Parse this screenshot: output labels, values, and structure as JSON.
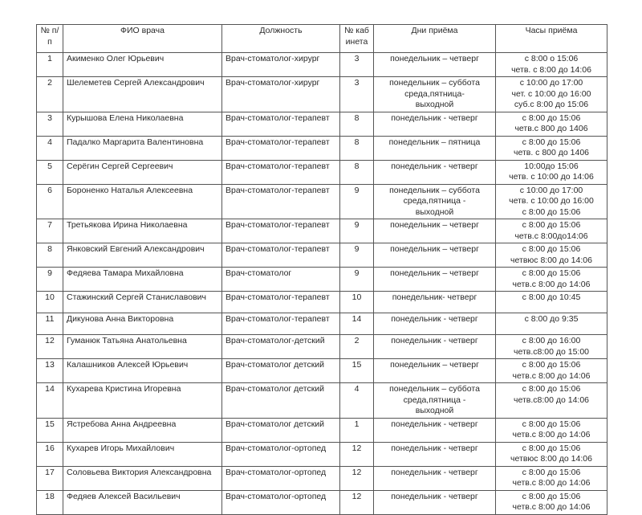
{
  "headers": [
    "№ п/п",
    "ФИО врача",
    "Должность",
    "№ кабинета",
    "Дни приёма",
    "Часы приёма"
  ],
  "rows": [
    {
      "n": "1",
      "name": "Акименко Олег Юрьевич",
      "pos": "Врач-стоматолог-хирург",
      "room": "3",
      "days": [
        "понедельник – четверг"
      ],
      "hours": [
        "с 8:00 о 15:06",
        "четв. с 8:00 до 14:06"
      ]
    },
    {
      "n": "2",
      "name": "Шелеметев Сергей Александрович",
      "pos": "Врач-стоматолог-хирург",
      "room": "3",
      "days": [
        "понедельник – суббота",
        "среда,пятница-",
        "выходной"
      ],
      "hours": [
        "с 10:00 до 17:00",
        "чет. с 10:00 до 16:00",
        "суб.с 8:00 до 15:06"
      ]
    },
    {
      "n": "3",
      "name": "Курышова Елена Николаевна",
      "pos": "Врач-стоматолог-терапевт",
      "room": "8",
      "days": [
        "понедельник - четверг"
      ],
      "hours": [
        "с 8:00 до 15:06",
        "четв.с 800 до 1406"
      ]
    },
    {
      "n": "4",
      "name": "Падалко Маргарита Валентиновна",
      "pos": "Врач-стоматолог-терапевт",
      "room": "8",
      "days": [
        "понедельник – пятница"
      ],
      "hours": [
        "с 8:00 до 15:06",
        "четв. с 800 до 1406"
      ]
    },
    {
      "n": "5",
      "name": "Серёгин Сергей Сергеевич",
      "pos": "Врач-стоматолог-терапевт",
      "room": "8",
      "days": [
        "понедельник - четверг"
      ],
      "hours": [
        "10:00до 15:06",
        "четв. с 10:00 до 14:06"
      ]
    },
    {
      "n": "6",
      "name": "Бороненко Наталья Алексеевна",
      "pos": "Врач-стоматолог-терапевт",
      "room": "9",
      "days": [
        "понедельник – суббота",
        "среда,пятница -",
        "выходной"
      ],
      "hours": [
        "с 10:00 до 17:00",
        "четв. с 10:00 до 16:00",
        "с 8:00 до 15:06"
      ]
    },
    {
      "n": "7",
      "name": "Третьякова Ирина Николаевна",
      "pos": "Врач-стоматолог-терапевт",
      "room": "9",
      "days": [
        "понедельник – четверг"
      ],
      "hours": [
        "с 8:00 до 15:06",
        "четв.с 8:00до14:06"
      ]
    },
    {
      "n": "8",
      "name": "Янковский Евгений Александрович",
      "pos": "Врач-стоматолог-терапевт",
      "room": "9",
      "days": [
        "понедельник – четверг"
      ],
      "hours": [
        "с 8:00 до 15:06",
        "четвюс 8:00 до 14:06"
      ]
    },
    {
      "n": "9",
      "name": "Федяева Тамара Михайловна",
      "pos": "Врач-стоматолог",
      "room": "9",
      "days": [
        "понедельник – четверг"
      ],
      "hours": [
        "с 8:00 до 15:06",
        "четв.с 8:00 до 14:06"
      ]
    },
    {
      "n": "10",
      "name": "Стажинский Сергей Станиславович",
      "pos": "Врач-стоматолог-терапевт",
      "room": "10",
      "days": [
        "понедельник- четверг"
      ],
      "hours": [
        "с 8:00 до 10:45"
      ]
    },
    {
      "n": "11",
      "name": "Дикунова Анна Викторовна",
      "pos": "Врач-стоматолог-терапевт",
      "room": "14",
      "days": [
        "понедельник - четверг"
      ],
      "hours": [
        "с 8:00 до 9:35"
      ]
    },
    {
      "n": "12",
      "name": "Гуманюк Татьяна Анатольевна",
      "pos": "Врач-стоматолог-детский",
      "room": "2",
      "days": [
        "понедельник - четверг"
      ],
      "hours": [
        "с 8:00 до 16:00",
        "четв.с8:00 до 15:00"
      ]
    },
    {
      "n": "13",
      "name": "Калашников Алексей Юрьевич",
      "pos": "Врач-стоматолог детский",
      "room": "15",
      "days": [
        "понедельник – четверг"
      ],
      "hours": [
        "с 8:00 до 15:06",
        "четв.с 8:00 до 14:06"
      ]
    },
    {
      "n": "14",
      "name": "Кухарева Кристина Игоревна",
      "pos": "Врач-стоматолог детский",
      "room": "4",
      "days": [
        "понедельник – суббота",
        "среда,пятница -",
        "выходной"
      ],
      "hours": [
        "с 8:00 до 15:06",
        "четв.с8:00 до 14:06"
      ]
    },
    {
      "n": "15",
      "name": "Ястребова Анна Андреевна",
      "pos": "Врач-стоматолог детский",
      "room": "1",
      "days": [
        "понедельник - четверг"
      ],
      "hours": [
        "с 8:00 до 15:06",
        "четв.с 8:00 до 14:06"
      ]
    },
    {
      "n": "16",
      "name": "Кухарев Игорь Михайлович",
      "pos": "Врач-стоматолог-ортопед",
      "room": "12",
      "days": [
        "понедельник - четверг"
      ],
      "hours": [
        "с 8:00 до 15:06",
        "четвюс 8:00 до 14:06"
      ]
    },
    {
      "n": "17",
      "name": "Соловьева Виктория Александровна",
      "pos": "Врач-стоматолог-ортопед",
      "room": "12",
      "days": [
        "понедельник - четверг"
      ],
      "hours": [
        "с 8:00 до 15:06",
        "четв.с 8:00 до 14:06"
      ]
    },
    {
      "n": "18",
      "name": "Федяев Алексей Васильевич",
      "pos": "Врач-стоматолог-ортопед",
      "room": "12",
      "days": [
        "понедельник - четверг"
      ],
      "hours": [
        "с 8:00 до 15:06",
        "четв.с 8:00 до 14:06"
      ]
    }
  ]
}
